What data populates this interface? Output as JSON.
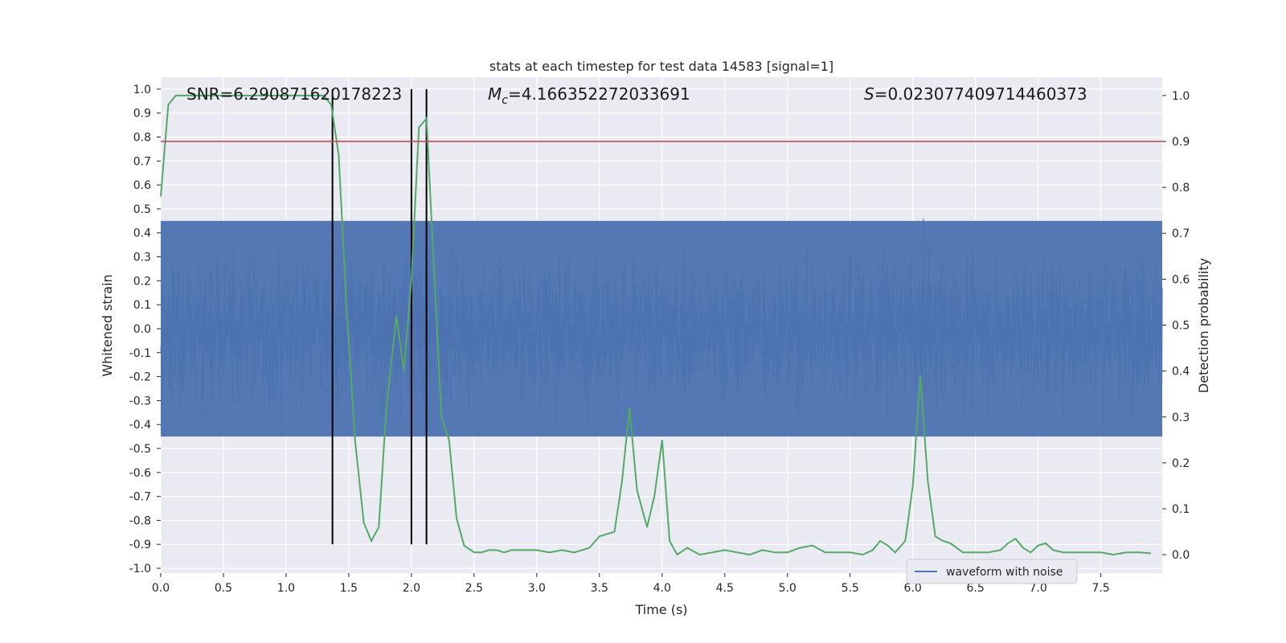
{
  "chart_data": {
    "type": "line",
    "title": "stats at each timestep for test data 14583 [signal=1]",
    "xlabel": "Time (s)",
    "ylabel_left": "Whitened strain",
    "ylabel_right": "Detection probability",
    "xlim": [
      0.0,
      7.99
    ],
    "ylim_left": [
      -1.02,
      1.05
    ],
    "ylim_right": [
      -0.04,
      1.04
    ],
    "x_ticks": [
      "0.0",
      "0.5",
      "1.0",
      "1.5",
      "2.0",
      "2.5",
      "3.0",
      "3.5",
      "4.0",
      "4.5",
      "5.0",
      "5.5",
      "6.0",
      "6.5",
      "7.0",
      "7.5"
    ],
    "x_tick_values": [
      0.0,
      0.5,
      1.0,
      1.5,
      2.0,
      2.5,
      3.0,
      3.5,
      4.0,
      4.5,
      5.0,
      5.5,
      6.0,
      6.5,
      7.0,
      7.5
    ],
    "y_left_ticks": [
      "1.0",
      "0.9",
      "0.8",
      "0.7",
      "0.6",
      "0.5",
      "0.4",
      "0.3",
      "0.2",
      "0.1",
      "0.0",
      "-0.1",
      "-0.2",
      "-0.3",
      "-0.4",
      "-0.5",
      "-0.6",
      "-0.7",
      "-0.8",
      "-0.9",
      "-1.0"
    ],
    "y_left_tick_values": [
      1.0,
      0.9,
      0.8,
      0.7,
      0.6,
      0.5,
      0.4,
      0.3,
      0.2,
      0.1,
      0.0,
      -0.1,
      -0.2,
      -0.3,
      -0.4,
      -0.5,
      -0.6,
      -0.7,
      -0.8,
      -0.9,
      -1.0
    ],
    "y_right_ticks": [
      "1.0",
      "0.9",
      "0.8",
      "0.7",
      "0.6",
      "0.5",
      "0.4",
      "0.3",
      "0.2",
      "0.1",
      "0.0"
    ],
    "y_right_tick_values": [
      1.0,
      0.9,
      0.8,
      0.7,
      0.6,
      0.5,
      0.4,
      0.3,
      0.2,
      0.1,
      0.0
    ],
    "grid": true,
    "legend_position": "bottom-right",
    "series": [
      {
        "name": "waveform with noise",
        "color": "#4c72b0",
        "kind": "noise-waveform",
        "sample_rate_hz": 400,
        "envelope_positive": 0.45,
        "envelope_negative": -0.45,
        "peak_max": 1.0,
        "peak_min": -0.92
      },
      {
        "color": "#55a868",
        "kind": "probability",
        "axis": "right",
        "x": [
          0.0,
          0.06,
          0.12,
          0.18,
          0.24,
          0.3,
          0.4,
          0.5,
          0.6,
          0.7,
          0.8,
          0.9,
          1.0,
          1.1,
          1.2,
          1.3,
          1.36,
          1.42,
          1.48,
          1.55,
          1.62,
          1.68,
          1.74,
          1.8,
          1.88,
          1.94,
          2.0,
          2.06,
          2.12,
          2.18,
          2.24,
          2.3,
          2.36,
          2.42,
          2.5,
          2.56,
          2.62,
          2.68,
          2.74,
          2.8,
          2.9,
          3.0,
          3.1,
          3.2,
          3.3,
          3.36,
          3.42,
          3.5,
          3.56,
          3.62,
          3.68,
          3.74,
          3.8,
          3.88,
          3.94,
          4.0,
          4.06,
          4.12,
          4.2,
          4.3,
          4.4,
          4.5,
          4.6,
          4.7,
          4.8,
          4.9,
          5.0,
          5.1,
          5.2,
          5.3,
          5.4,
          5.5,
          5.6,
          5.68,
          5.74,
          5.8,
          5.86,
          5.94,
          6.0,
          6.06,
          6.12,
          6.18,
          6.24,
          6.3,
          6.4,
          6.5,
          6.6,
          6.7,
          6.76,
          6.82,
          6.88,
          6.94,
          7.0,
          7.06,
          7.12,
          7.2,
          7.3,
          7.4,
          7.5,
          7.6,
          7.7,
          7.8,
          7.9
        ],
        "values": [
          0.78,
          0.98,
          1.0,
          1.0,
          1.0,
          1.0,
          1.0,
          1.0,
          1.0,
          1.0,
          1.0,
          1.0,
          1.0,
          1.0,
          1.0,
          1.0,
          0.98,
          0.87,
          0.55,
          0.25,
          0.07,
          0.03,
          0.06,
          0.32,
          0.52,
          0.4,
          0.6,
          0.93,
          0.95,
          0.62,
          0.3,
          0.25,
          0.08,
          0.02,
          0.005,
          0.005,
          0.01,
          0.01,
          0.005,
          0.01,
          0.01,
          0.01,
          0.005,
          0.01,
          0.005,
          0.01,
          0.015,
          0.04,
          0.045,
          0.05,
          0.16,
          0.32,
          0.14,
          0.06,
          0.13,
          0.25,
          0.03,
          0.0,
          0.015,
          0.0,
          0.005,
          0.01,
          0.005,
          0.0,
          0.01,
          0.005,
          0.005,
          0.015,
          0.02,
          0.005,
          0.005,
          0.005,
          0.0,
          0.01,
          0.03,
          0.02,
          0.005,
          0.03,
          0.15,
          0.39,
          0.16,
          0.04,
          0.03,
          0.025,
          0.005,
          0.005,
          0.005,
          0.01,
          0.025,
          0.035,
          0.015,
          0.005,
          0.02,
          0.025,
          0.01,
          0.005,
          0.005,
          0.005,
          0.005,
          0.0,
          0.005,
          0.005,
          0.003
        ]
      }
    ],
    "threshold_line": {
      "axis": "right",
      "value": 0.9,
      "color": "#c44e52"
    },
    "vertical_markers": [
      {
        "x": 1.37,
        "color": "#000000",
        "from": -0.9,
        "to": 1.0
      },
      {
        "x": 2.0,
        "color": "#000000",
        "from": -0.9,
        "to": 1.0
      },
      {
        "x": 2.12,
        "color": "#000000",
        "from": -0.9,
        "to": 1.0
      }
    ],
    "annotations": {
      "snr": "SNR=6.290871620178223",
      "mc_value": "=4.166352272033691",
      "s_value": "=0.023077409714460373"
    }
  }
}
